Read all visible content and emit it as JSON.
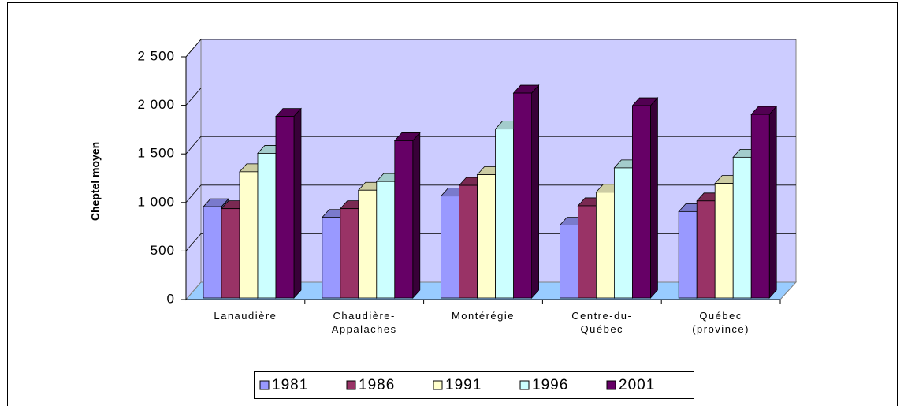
{
  "chart_data": {
    "type": "bar3d",
    "y_label": "Cheptel moyen",
    "categories": [
      "Lanaudière",
      "Chaudière-Appalaches",
      "Montérégie",
      "Centre-du-Québec",
      "Québec (province)"
    ],
    "series": [
      {
        "name": "1981",
        "color": "#9999ff",
        "values": [
          940,
          830,
          1050,
          750,
          890
        ]
      },
      {
        "name": "1986",
        "color": "#993366",
        "values": [
          920,
          920,
          1160,
          950,
          1000
        ]
      },
      {
        "name": "1991",
        "color": "#ffffcc",
        "values": [
          1300,
          1110,
          1270,
          1090,
          1180
        ]
      },
      {
        "name": "1996",
        "color": "#ccffff",
        "values": [
          1490,
          1200,
          1740,
          1340,
          1450
        ]
      },
      {
        "name": "2001",
        "color": "#660066",
        "values": [
          1870,
          1620,
          2110,
          1980,
          1890
        ]
      }
    ],
    "ylim": [
      0,
      2500
    ],
    "yticks": [
      0,
      500,
      {
        "value": 1000,
        "label": "1 000"
      },
      {
        "value": 1500,
        "label": "1 500"
      },
      {
        "value": 2000,
        "label": "2 000"
      },
      {
        "value": 2500,
        "label": "2 500"
      }
    ],
    "grid": true,
    "legend": "bottom"
  }
}
